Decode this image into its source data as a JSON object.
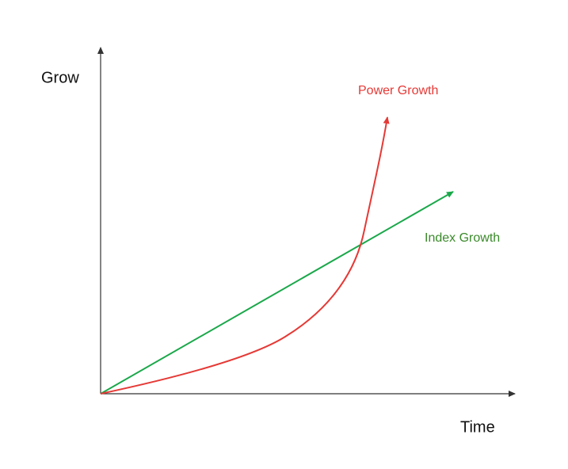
{
  "axes": {
    "y_label": "Grow",
    "x_label": "Time"
  },
  "curves": [
    {
      "label": "Power Growth"
    },
    {
      "label": "Index Growth"
    }
  ]
}
